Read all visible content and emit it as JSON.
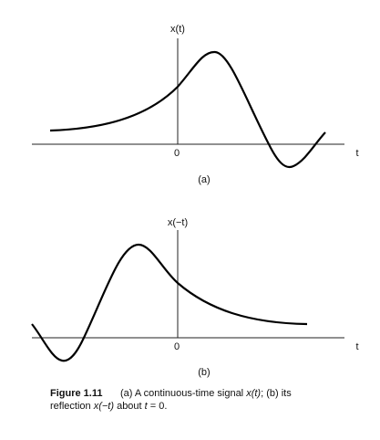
{
  "panel_a": {
    "y_label": "x(t)",
    "origin": "0",
    "x_label": "t",
    "tag": "(a)"
  },
  "panel_b": {
    "y_label": "x(−t)",
    "origin": "0",
    "x_label": "t",
    "tag": "(b)"
  },
  "caption": {
    "label": "Figure 1.11",
    "line1": [
      "(a) A continuous-time signal ",
      "x(t)",
      "; (b) its"
    ],
    "line2": [
      "reflection ",
      "x(−t)",
      " about ",
      "t",
      " = 0."
    ]
  }
}
